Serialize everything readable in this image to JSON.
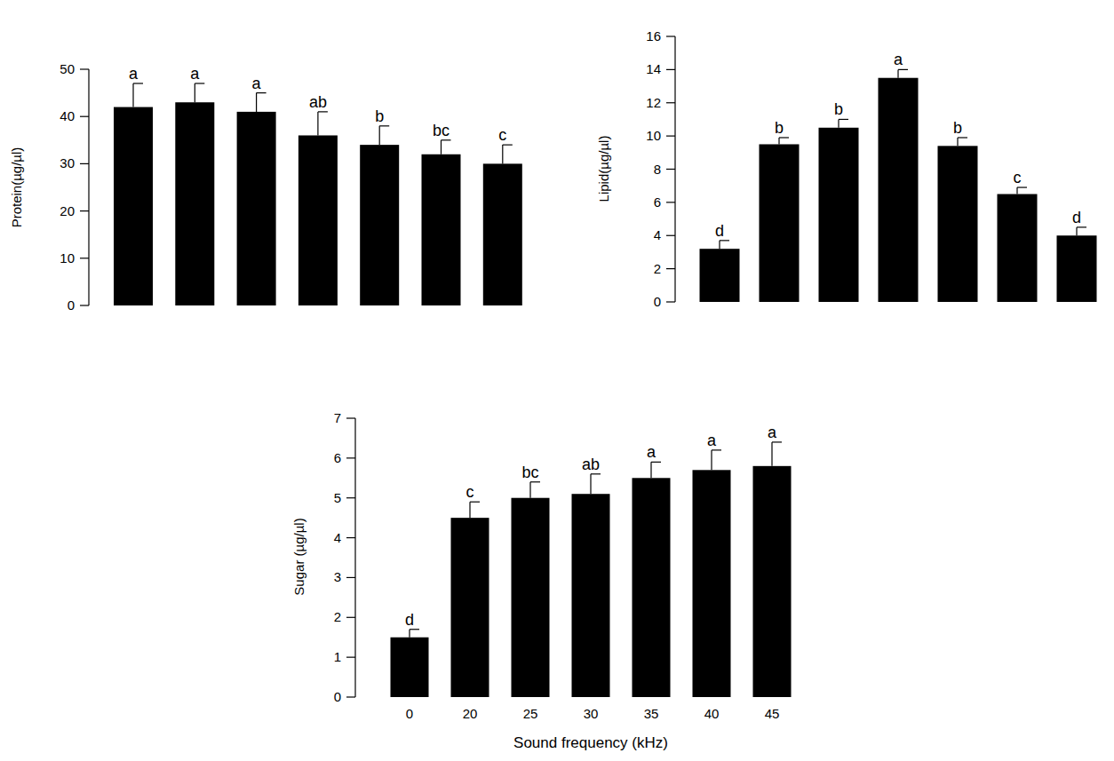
{
  "chart_data": [
    {
      "type": "bar",
      "y_label": "Protein(µg/µl)",
      "categories": [
        null,
        null,
        null,
        null,
        null,
        null,
        null
      ],
      "values": [
        42,
        43,
        41,
        36,
        34,
        32,
        30
      ],
      "errors": [
        5,
        4,
        4,
        5,
        4,
        3,
        4
      ],
      "significance": [
        "a",
        "a",
        "a",
        "ab",
        "b",
        "bc",
        "c"
      ],
      "color": "#000000",
      "ylim": [
        0,
        50
      ],
      "yticks": [
        0,
        10,
        20,
        30,
        40,
        50
      ],
      "grid": false
    },
    {
      "type": "bar",
      "y_label": "Lipid(µg/µl)",
      "categories": [
        null,
        null,
        null,
        null,
        null,
        null,
        null
      ],
      "values": [
        3.2,
        9.5,
        10.5,
        13.5,
        9.4,
        6.5,
        4.0
      ],
      "errors": [
        0.5,
        0.4,
        0.5,
        0.5,
        0.5,
        0.4,
        0.5
      ],
      "significance": [
        "d",
        "b",
        "b",
        "a",
        "b",
        "c",
        "d"
      ],
      "color": "#000000",
      "ylim": [
        0,
        16
      ],
      "yticks": [
        0,
        2,
        4,
        6,
        8,
        10,
        12,
        14,
        16
      ],
      "grid": false
    },
    {
      "type": "bar",
      "y_label": "Sugar (µg/µl)",
      "x_label": "Sound frequency (kHz)",
      "categories": [
        "0",
        "20",
        "25",
        "30",
        "35",
        "40",
        "45"
      ],
      "values": [
        1.5,
        4.5,
        5.0,
        5.1,
        5.5,
        5.7,
        5.8
      ],
      "errors": [
        0.2,
        0.4,
        0.4,
        0.5,
        0.4,
        0.5,
        0.6
      ],
      "significance": [
        "d",
        "c",
        "bc",
        "ab",
        "a",
        "a",
        "a"
      ],
      "color": "#000000",
      "ylim": [
        0,
        7
      ],
      "yticks": [
        0,
        1,
        2,
        3,
        4,
        5,
        6,
        7
      ],
      "grid": false
    }
  ]
}
